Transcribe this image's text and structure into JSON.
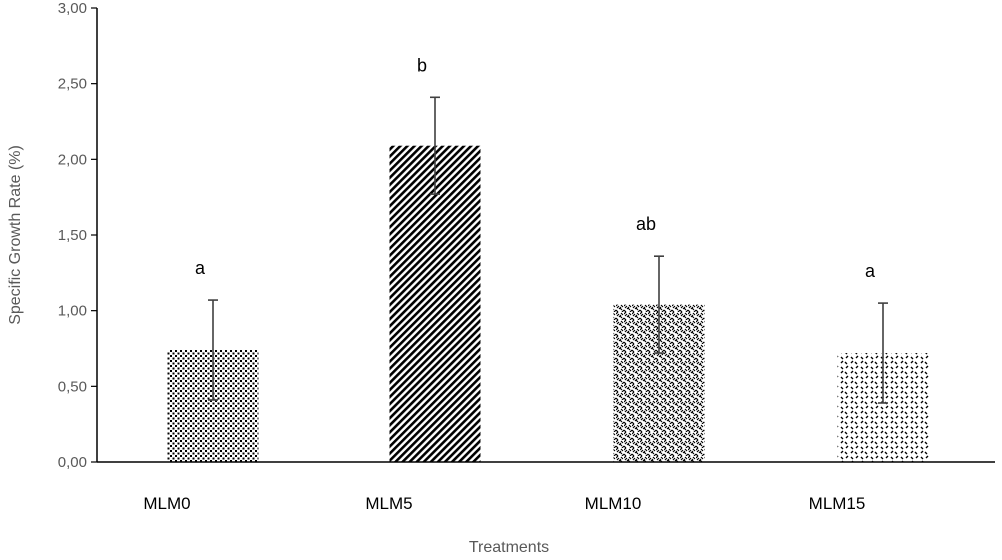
{
  "chart_data": {
    "type": "bar",
    "title": "",
    "xlabel": "Treatments",
    "ylabel": "Specific Growth Rate (%)",
    "categories": [
      "MLM0",
      "MLM5",
      "MLM10",
      "MLM15"
    ],
    "values": [
      0.74,
      2.09,
      1.04,
      0.72
    ],
    "errors": [
      0.33,
      0.32,
      0.32,
      0.33
    ],
    "significance_labels": [
      "a",
      "b",
      "ab",
      "a"
    ],
    "ylim": [
      0,
      3
    ],
    "yticks": [
      0,
      0.5,
      1,
      1.5,
      2,
      2.5,
      3
    ],
    "ytick_labels": [
      "0,00",
      "0,50",
      "1,00",
      "1,50",
      "2,00",
      "2,50",
      "3,00"
    ],
    "grid": false,
    "legend": "none",
    "colors": {
      "axis": "#000000",
      "tick_text": "#595959",
      "error_bar": "#404040",
      "bar_pattern": "#000000"
    }
  }
}
